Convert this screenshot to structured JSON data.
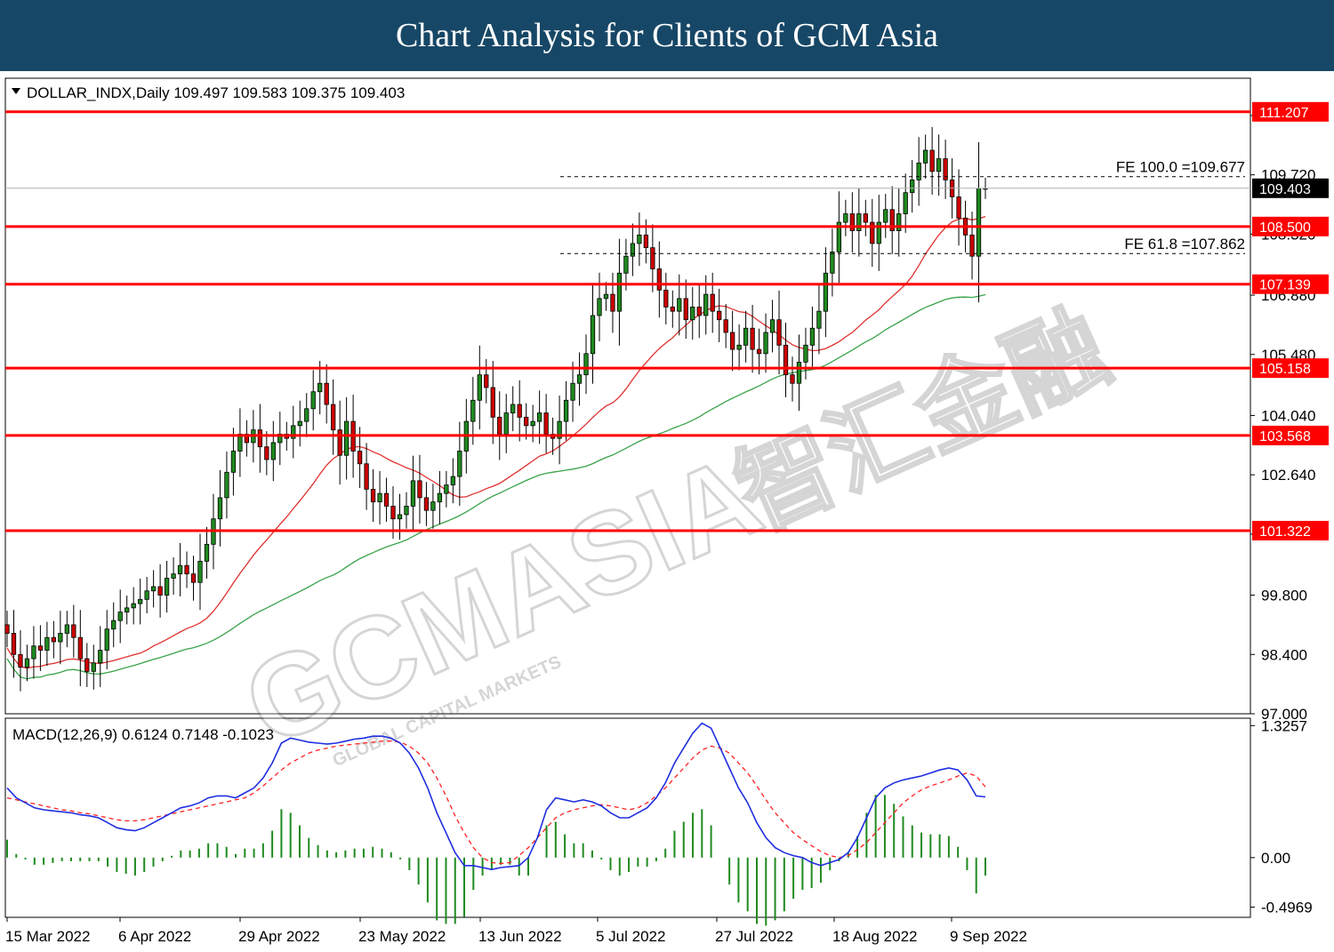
{
  "header": {
    "title": "Chart Analysis for Clients of GCM Asia"
  },
  "watermark": {
    "text": "GCMASIA",
    "subtext": "GLOBAL CAPITAL MARKETS",
    "cjk": "智汇金融"
  },
  "colors": {
    "banner": "#174766",
    "candle": "#000000",
    "candle_up": "#1f8a1f",
    "candle_down": "#cc0000",
    "level": "#ff0000",
    "ma_fast": "#e0302f",
    "ma_slow": "#3aa34a",
    "macd": "#1f2ee0",
    "signal": "#ff2020",
    "hist": "#1f8a1f"
  },
  "chart_data": [
    {
      "type": "candlestick",
      "symbol_label": "DOLLAR_INDX,Daily  109.497 109.583 109.375 109.403",
      "last_price_label": "109.403",
      "y_ticks": [
        "111.120",
        "109.720",
        "108.320",
        "106.880",
        "105.480",
        "104.040",
        "102.640",
        "101.240",
        "99.800",
        "98.400",
        "97.000"
      ],
      "x_ticks": [
        "15 Mar 2022",
        "6 Apr 2022",
        "29 Apr 2022",
        "23 May 2022",
        "13 Jun 2022",
        "5 Jul 2022",
        "27 Jul 2022",
        "18 Aug 2022",
        "9 Sep 2022"
      ],
      "ylim": [
        97.0,
        112.0
      ],
      "levels": [
        {
          "label": "111.207",
          "value": 111.207
        },
        {
          "label": "108.500",
          "value": 108.5
        },
        {
          "label": "107.139",
          "value": 107.139
        },
        {
          "label": "105.158",
          "value": 105.158
        },
        {
          "label": "103.568",
          "value": 103.568
        },
        {
          "label": "101.322",
          "value": 101.322
        }
      ],
      "fib": [
        {
          "label": "FE 100.0 =109.677",
          "value": 109.677
        },
        {
          "label": "FE 61.8 =107.862",
          "value": 107.862
        }
      ],
      "close": [
        98.9,
        98.4,
        98.1,
        98.3,
        98.6,
        98.5,
        98.8,
        98.7,
        98.9,
        99.1,
        98.8,
        98.3,
        98.0,
        98.2,
        98.5,
        99.0,
        99.2,
        99.4,
        99.5,
        99.6,
        99.7,
        99.9,
        100.0,
        99.8,
        100.2,
        100.3,
        100.5,
        100.3,
        100.1,
        100.6,
        101.0,
        101.6,
        102.1,
        102.7,
        103.2,
        103.6,
        103.4,
        103.7,
        103.3,
        103.0,
        103.4,
        103.6,
        103.5,
        103.8,
        103.9,
        104.2,
        104.6,
        104.8,
        104.3,
        103.7,
        103.1,
        103.9,
        103.2,
        102.9,
        102.3,
        102.0,
        102.2,
        101.9,
        101.6,
        101.7,
        101.9,
        102.5,
        102.1,
        101.8,
        102.0,
        102.2,
        102.4,
        102.6,
        103.2,
        103.9,
        104.4,
        105.0,
        104.7,
        104.0,
        103.6,
        104.1,
        104.3,
        104.0,
        103.8,
        103.9,
        104.1,
        103.6,
        103.5,
        103.9,
        104.4,
        104.8,
        105.0,
        105.5,
        106.4,
        106.8,
        106.9,
        106.5,
        107.4,
        107.8,
        108.1,
        108.3,
        108.0,
        107.5,
        107.0,
        106.6,
        106.5,
        106.8,
        106.3,
        106.6,
        106.4,
        106.9,
        106.5,
        106.3,
        106.0,
        105.6,
        105.7,
        106.1,
        105.6,
        105.5,
        106.0,
        106.3,
        105.7,
        105.0,
        104.8,
        105.3,
        105.7,
        106.1,
        106.5,
        107.4,
        107.9,
        108.6,
        108.8,
        108.4,
        108.8,
        108.6,
        108.1,
        108.6,
        108.9,
        108.4,
        108.8,
        109.3,
        109.6,
        110.0,
        110.3,
        109.8,
        110.1,
        109.6,
        109.2,
        108.7,
        108.3,
        107.8,
        109.4,
        109.4
      ]
    },
    {
      "type": "macd",
      "label": "MACD(12,26,9) 0.6124 0.7148 -0.1023",
      "y_ticks": [
        "1.3257",
        "0.00",
        "-0.4969"
      ],
      "ylim": [
        -0.6,
        1.4
      ],
      "macd": [
        0.7,
        0.6,
        0.55,
        0.5,
        0.48,
        0.47,
        0.46,
        0.45,
        0.43,
        0.42,
        0.4,
        0.35,
        0.3,
        0.28,
        0.27,
        0.3,
        0.35,
        0.4,
        0.45,
        0.5,
        0.52,
        0.55,
        0.6,
        0.62,
        0.62,
        0.6,
        0.65,
        0.7,
        0.8,
        0.95,
        1.15,
        1.2,
        1.18,
        1.16,
        1.15,
        1.14,
        1.15,
        1.17,
        1.19,
        1.2,
        1.22,
        1.22,
        1.2,
        1.15,
        1.05,
        0.9,
        0.7,
        0.45,
        0.25,
        0.05,
        -0.08,
        -0.08,
        -0.1,
        -0.12,
        -0.1,
        -0.09,
        -0.08,
        0.0,
        0.2,
        0.48,
        0.6,
        0.58,
        0.56,
        0.58,
        0.56,
        0.52,
        0.45,
        0.4,
        0.4,
        0.45,
        0.5,
        0.6,
        0.75,
        0.95,
        1.1,
        1.25,
        1.35,
        1.3,
        1.1,
        0.9,
        0.7,
        0.55,
        0.35,
        0.2,
        0.1,
        0.05,
        0.02,
        0.0,
        -0.05,
        -0.08,
        -0.05,
        -0.02,
        0.05,
        0.2,
        0.4,
        0.6,
        0.7,
        0.75,
        0.78,
        0.8,
        0.82,
        0.85,
        0.88,
        0.9,
        0.88,
        0.78,
        0.62,
        0.61
      ],
      "signal": [
        0.6,
        0.58,
        0.56,
        0.54,
        0.52,
        0.5,
        0.48,
        0.47,
        0.45,
        0.44,
        0.42,
        0.4,
        0.38,
        0.37,
        0.37,
        0.38,
        0.4,
        0.42,
        0.44,
        0.46,
        0.48,
        0.5,
        0.52,
        0.54,
        0.56,
        0.58,
        0.6,
        0.65,
        0.72,
        0.8,
        0.88,
        0.95,
        1.0,
        1.05,
        1.08,
        1.1,
        1.12,
        1.13,
        1.14,
        1.15,
        1.16,
        1.17,
        1.17,
        1.16,
        1.12,
        1.05,
        0.95,
        0.8,
        0.62,
        0.42,
        0.25,
        0.1,
        0.0,
        -0.05,
        -0.06,
        -0.05,
        0.02,
        0.1,
        0.2,
        0.3,
        0.4,
        0.45,
        0.48,
        0.5,
        0.52,
        0.53,
        0.52,
        0.5,
        0.48,
        0.5,
        0.55,
        0.62,
        0.7,
        0.8,
        0.9,
        1.0,
        1.08,
        1.12,
        1.1,
        1.05,
        0.95,
        0.85,
        0.72,
        0.58,
        0.45,
        0.35,
        0.25,
        0.18,
        0.12,
        0.06,
        0.02,
        0.0,
        0.02,
        0.08,
        0.15,
        0.25,
        0.35,
        0.45,
        0.55,
        0.62,
        0.68,
        0.72,
        0.75,
        0.78,
        0.82,
        0.85,
        0.82,
        0.71
      ]
    }
  ]
}
